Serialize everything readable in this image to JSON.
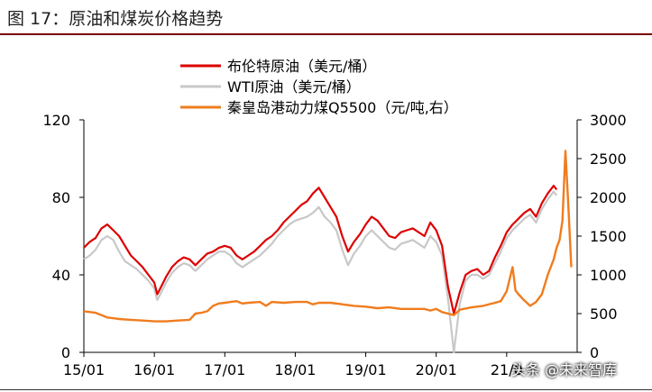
{
  "figure_title": "图  17：原油和煤炭价格趋势",
  "watermark": "头条 @未来智库",
  "colors": {
    "brent": "#dd0000",
    "wti": "#c8c8c8",
    "coal": "#f07c1e",
    "axis": "#000000"
  },
  "chart_data": {
    "type": "line",
    "x_ticks": [
      "15/01",
      "16/01",
      "17/01",
      "18/01",
      "19/01",
      "20/01",
      "21/0"
    ],
    "y_left": {
      "ticks": [
        0,
        40,
        80,
        120
      ],
      "range": [
        0,
        120
      ]
    },
    "y_right": {
      "ticks": [
        0,
        500,
        1000,
        1500,
        2000,
        2500,
        3000
      ],
      "range": [
        0,
        3000
      ]
    },
    "legend_position": "top-center",
    "series": [
      {
        "name": "布伦特原油（美元/桶）",
        "axis": "left",
        "color": "#dd0000",
        "points": [
          [
            0,
            54
          ],
          [
            1,
            57
          ],
          [
            2,
            59
          ],
          [
            3,
            64
          ],
          [
            4,
            66
          ],
          [
            5,
            63
          ],
          [
            6,
            60
          ],
          [
            7,
            55
          ],
          [
            8,
            50
          ],
          [
            9,
            47
          ],
          [
            10,
            44
          ],
          [
            11,
            40
          ],
          [
            12,
            36
          ],
          [
            12.5,
            30
          ],
          [
            13,
            33
          ],
          [
            14,
            39
          ],
          [
            15,
            44
          ],
          [
            16,
            47
          ],
          [
            17,
            49
          ],
          [
            18,
            48
          ],
          [
            19,
            45
          ],
          [
            20,
            48
          ],
          [
            21,
            51
          ],
          [
            22,
            52
          ],
          [
            23,
            54
          ],
          [
            24,
            55
          ],
          [
            25,
            54
          ],
          [
            26,
            50
          ],
          [
            27,
            48
          ],
          [
            28,
            50
          ],
          [
            29,
            52
          ],
          [
            30,
            55
          ],
          [
            31,
            58
          ],
          [
            32,
            60
          ],
          [
            33,
            63
          ],
          [
            34,
            67
          ],
          [
            35,
            70
          ],
          [
            36,
            73
          ],
          [
            37,
            76
          ],
          [
            38,
            78
          ],
          [
            39,
            82
          ],
          [
            40,
            85
          ],
          [
            41,
            80
          ],
          [
            42,
            75
          ],
          [
            43,
            70
          ],
          [
            44,
            60
          ],
          [
            45,
            52
          ],
          [
            46,
            57
          ],
          [
            47,
            61
          ],
          [
            48,
            66
          ],
          [
            49,
            70
          ],
          [
            50,
            68
          ],
          [
            51,
            64
          ],
          [
            52,
            60
          ],
          [
            53,
            59
          ],
          [
            54,
            62
          ],
          [
            55,
            63
          ],
          [
            56,
            64
          ],
          [
            57,
            62
          ],
          [
            58,
            60
          ],
          [
            59,
            67
          ],
          [
            60,
            63
          ],
          [
            61,
            55
          ],
          [
            62,
            34
          ],
          [
            63,
            20
          ],
          [
            64,
            31
          ],
          [
            65,
            40
          ],
          [
            66,
            42
          ],
          [
            67,
            43
          ],
          [
            68,
            40
          ],
          [
            69,
            42
          ],
          [
            70,
            49
          ],
          [
            71,
            55
          ],
          [
            72,
            62
          ],
          [
            73,
            66
          ],
          [
            74,
            69
          ],
          [
            75,
            72
          ],
          [
            76,
            74
          ],
          [
            77,
            70
          ],
          [
            78,
            77
          ],
          [
            79,
            82
          ],
          [
            80,
            86
          ],
          [
            80.5,
            84
          ]
        ]
      },
      {
        "name": "WTI原油（美元/桶）",
        "axis": "left",
        "color": "#c8c8c8",
        "points": [
          [
            0,
            48
          ],
          [
            1,
            50
          ],
          [
            2,
            53
          ],
          [
            3,
            58
          ],
          [
            4,
            60
          ],
          [
            5,
            58
          ],
          [
            6,
            52
          ],
          [
            7,
            47
          ],
          [
            8,
            45
          ],
          [
            9,
            43
          ],
          [
            10,
            40
          ],
          [
            11,
            37
          ],
          [
            12,
            33
          ],
          [
            12.5,
            27
          ],
          [
            13,
            30
          ],
          [
            14,
            36
          ],
          [
            15,
            41
          ],
          [
            16,
            44
          ],
          [
            17,
            46
          ],
          [
            18,
            45
          ],
          [
            19,
            42
          ],
          [
            20,
            45
          ],
          [
            21,
            48
          ],
          [
            22,
            50
          ],
          [
            23,
            52
          ],
          [
            24,
            52
          ],
          [
            25,
            50
          ],
          [
            26,
            46
          ],
          [
            27,
            44
          ],
          [
            28,
            46
          ],
          [
            29,
            48
          ],
          [
            30,
            50
          ],
          [
            31,
            53
          ],
          [
            32,
            56
          ],
          [
            33,
            60
          ],
          [
            34,
            63
          ],
          [
            35,
            66
          ],
          [
            36,
            68
          ],
          [
            37,
            69
          ],
          [
            38,
            70
          ],
          [
            39,
            72
          ],
          [
            40,
            75
          ],
          [
            41,
            70
          ],
          [
            42,
            67
          ],
          [
            43,
            63
          ],
          [
            44,
            53
          ],
          [
            45,
            45
          ],
          [
            46,
            51
          ],
          [
            47,
            55
          ],
          [
            48,
            60
          ],
          [
            49,
            63
          ],
          [
            50,
            60
          ],
          [
            51,
            57
          ],
          [
            52,
            54
          ],
          [
            53,
            53
          ],
          [
            54,
            56
          ],
          [
            55,
            57
          ],
          [
            56,
            58
          ],
          [
            57,
            56
          ],
          [
            58,
            54
          ],
          [
            59,
            60
          ],
          [
            60,
            57
          ],
          [
            61,
            50
          ],
          [
            62,
            28
          ],
          [
            63,
            0
          ],
          [
            64,
            25
          ],
          [
            65,
            37
          ],
          [
            66,
            40
          ],
          [
            67,
            40
          ],
          [
            68,
            38
          ],
          [
            69,
            40
          ],
          [
            70,
            46
          ],
          [
            71,
            52
          ],
          [
            72,
            59
          ],
          [
            73,
            63
          ],
          [
            74,
            66
          ],
          [
            75,
            69
          ],
          [
            76,
            71
          ],
          [
            77,
            67
          ],
          [
            78,
            74
          ],
          [
            79,
            79
          ],
          [
            80,
            83
          ],
          [
            80.5,
            81
          ]
        ]
      },
      {
        "name": "秦皇岛港动力煤Q5500（元/吨,右）",
        "axis": "right",
        "color": "#f07c1e",
        "points": [
          [
            0,
            530
          ],
          [
            2,
            510
          ],
          [
            4,
            450
          ],
          [
            6,
            430
          ],
          [
            8,
            420
          ],
          [
            10,
            410
          ],
          [
            12,
            400
          ],
          [
            14,
            400
          ],
          [
            16,
            410
          ],
          [
            18,
            420
          ],
          [
            19,
            500
          ],
          [
            20,
            510
          ],
          [
            21,
            530
          ],
          [
            22,
            600
          ],
          [
            23,
            630
          ],
          [
            24,
            640
          ],
          [
            26,
            660
          ],
          [
            27,
            630
          ],
          [
            28,
            640
          ],
          [
            30,
            650
          ],
          [
            31,
            600
          ],
          [
            32,
            650
          ],
          [
            34,
            640
          ],
          [
            36,
            650
          ],
          [
            38,
            650
          ],
          [
            39,
            620
          ],
          [
            40,
            640
          ],
          [
            42,
            640
          ],
          [
            44,
            620
          ],
          [
            46,
            600
          ],
          [
            48,
            590
          ],
          [
            50,
            570
          ],
          [
            52,
            580
          ],
          [
            54,
            560
          ],
          [
            56,
            560
          ],
          [
            58,
            560
          ],
          [
            59,
            540
          ],
          [
            60,
            560
          ],
          [
            61,
            520
          ],
          [
            62,
            500
          ],
          [
            63,
            480
          ],
          [
            64,
            550
          ],
          [
            66,
            580
          ],
          [
            68,
            600
          ],
          [
            70,
            640
          ],
          [
            71,
            660
          ],
          [
            72,
            790
          ],
          [
            73,
            1100
          ],
          [
            73.5,
            800
          ],
          [
            74,
            750
          ],
          [
            75,
            670
          ],
          [
            76,
            600
          ],
          [
            77,
            650
          ],
          [
            78,
            750
          ],
          [
            79,
            1000
          ],
          [
            80,
            1200
          ],
          [
            80.5,
            1350
          ],
          [
            81,
            1450
          ],
          [
            81.5,
            1700
          ],
          [
            82,
            2600
          ],
          [
            82.5,
            1900
          ],
          [
            83,
            1100
          ]
        ]
      }
    ]
  }
}
